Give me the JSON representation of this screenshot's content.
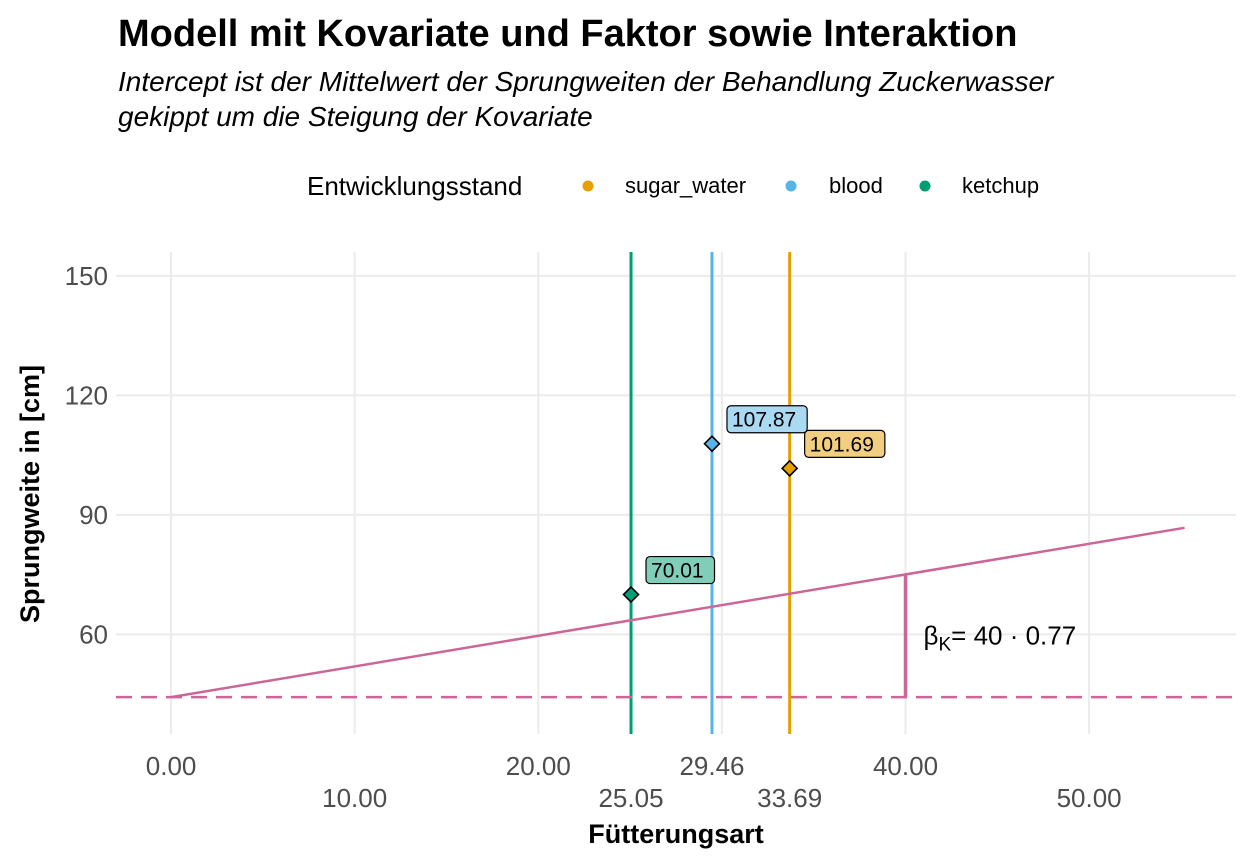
{
  "chart_data": {
    "type": "scatter",
    "title": "Modell mit Kovariate und Faktor sowie Interaktion",
    "subtitle_lines": [
      "Intercept ist der Mittelwert der Sprungweiten der Behandlung Zuckerwasser",
      "gekippt um die Steigung der Kovariate"
    ],
    "xlabel": "Fütterungsart",
    "ylabel": "Sprungweite in [cm]",
    "xlim": [
      -3,
      58
    ],
    "ylim": [
      35,
      156
    ],
    "grid": true,
    "x_ticks": [
      {
        "value": 0,
        "label": "0.00",
        "row": 1
      },
      {
        "value": 10,
        "label": "10.00",
        "row": 2
      },
      {
        "value": 20,
        "label": "20.00",
        "row": 1
      },
      {
        "value": 25.05,
        "label": "25.05",
        "row": 2
      },
      {
        "value": 29.46,
        "label": "29.46",
        "row": 1
      },
      {
        "value": 33.69,
        "label": "33.69",
        "row": 2
      },
      {
        "value": 40,
        "label": "40.00",
        "row": 1
      },
      {
        "value": 50,
        "label": "50.00",
        "row": 2
      }
    ],
    "x_grid": [
      0,
      10,
      20,
      30,
      40,
      50
    ],
    "y_ticks": [
      {
        "value": 60,
        "label": "60"
      },
      {
        "value": 90,
        "label": "90"
      },
      {
        "value": 120,
        "label": "120"
      },
      {
        "value": 150,
        "label": "150"
      }
    ],
    "legend": {
      "title": "Entwicklungsstand",
      "position": "top",
      "entries": [
        {
          "name": "sugar_water",
          "color": "#E69F00"
        },
        {
          "name": "blood",
          "color": "#56B4E9"
        },
        {
          "name": "ketchup",
          "color": "#009E73"
        }
      ]
    },
    "groups": [
      {
        "name": "sugar_water",
        "color": "#E69F00",
        "label_fill": "#F2CF80",
        "x": 33.69,
        "y": 101.69,
        "label": "101.69"
      },
      {
        "name": "blood",
        "color": "#56B4E9",
        "label_fill": "#AAD9F4",
        "x": 29.46,
        "y": 107.87,
        "label": "107.87"
      },
      {
        "name": "ketchup",
        "color": "#009E73",
        "label_fill": "#80CEB9",
        "x": 25.05,
        "y": 70.01,
        "label": "70.01"
      }
    ],
    "regression_line": {
      "color": "#CC6699",
      "intercept": 44.26,
      "slope": 0.77,
      "x_from": 0,
      "x_to": 55.2
    },
    "intercept_hline": {
      "y": 44.26,
      "color": "#CC6699",
      "style": "dashed"
    },
    "slope_annotation": {
      "x": 40,
      "y_from": 44.26,
      "y_to": 75.06,
      "text_beta": "β",
      "text_sub": "K",
      "text_rest": "= 40 · 0.77"
    }
  }
}
